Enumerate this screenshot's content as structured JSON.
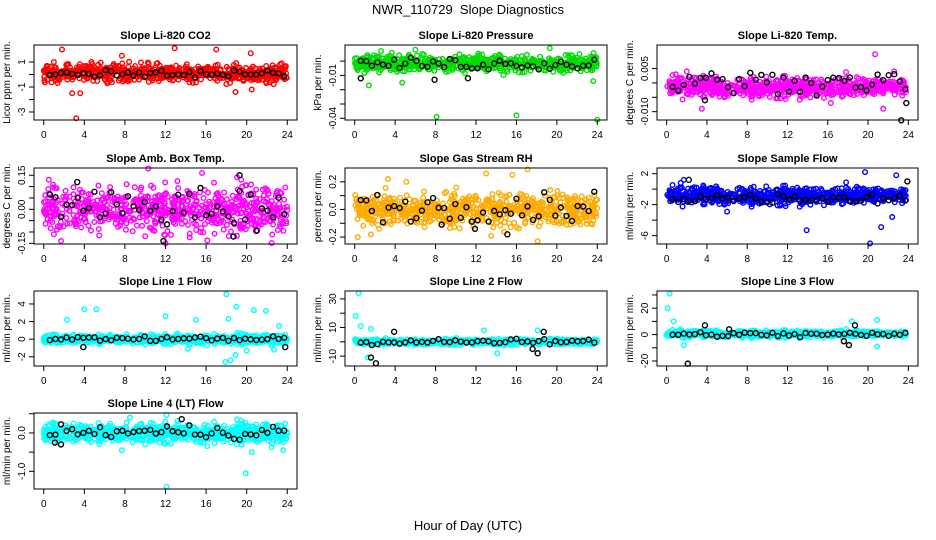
{
  "title": "NWR_110729  Slope Diagnostics",
  "xlabel": "Hour of Day (UTC)",
  "chart_data": [
    {
      "type": "scatter",
      "title": "Slope Li-820 CO2",
      "ylabel": "Licor ppm per min.",
      "color": "#ff0000",
      "xlim": [
        0,
        24
      ],
      "xticks": [
        0,
        4,
        8,
        12,
        16,
        20,
        24
      ],
      "ylim": [
        -3.64,
        2.36
      ],
      "yticks": [
        1,
        0,
        -1,
        -2,
        -3
      ],
      "ytick_labels": [
        "1",
        "",
        "-1",
        "",
        "-3"
      ],
      "typical_range": [
        -0.6,
        0.8
      ],
      "reference_range": [
        -0.2,
        0.3
      ],
      "outliers": [
        [
          1.8,
          2.0
        ],
        [
          12.9,
          2.1
        ],
        [
          17.0,
          2.0
        ],
        [
          20.4,
          1.7
        ],
        [
          3.2,
          -3.5
        ],
        [
          3.6,
          -1.5
        ],
        [
          2.8,
          -1.5
        ],
        [
          18.9,
          -1.4
        ],
        [
          7.7,
          1.5
        ],
        [
          20.5,
          -1.2
        ],
        [
          1.0,
          1.0
        ],
        [
          4.7,
          1.0
        ]
      ],
      "reference_outliers": []
    },
    {
      "type": "scatter",
      "title": "Slope Li-820 Pressure",
      "ylabel": "kPa per min.",
      "color": "#00dd00",
      "xlim": [
        0,
        24
      ],
      "xticks": [
        0,
        4,
        8,
        12,
        16,
        20,
        24
      ],
      "ylim": [
        -0.0412,
        0.0113
      ],
      "yticks": [
        0.0,
        -0.01,
        -0.02,
        -0.03,
        -0.04
      ],
      "ytick_labels": [
        "",
        "-0.01",
        "",
        "",
        "-0.04"
      ],
      "typical_range": [
        -0.007,
        0.004
      ],
      "reference_range": [
        -0.006,
        0.002
      ],
      "outliers": [
        [
          8.1,
          -0.039
        ],
        [
          16.0,
          -0.038
        ],
        [
          24.0,
          -0.041
        ],
        [
          1.4,
          -0.017
        ],
        [
          4.7,
          -0.015
        ],
        [
          23.6,
          -0.014
        ],
        [
          6.0,
          0.008
        ],
        [
          19.3,
          0.009
        ],
        [
          2.6,
          0.007
        ]
      ],
      "reference_outliers": [
        [
          0.6,
          -0.012
        ],
        [
          11.2,
          -0.012
        ],
        [
          7.9,
          -0.013
        ]
      ]
    },
    {
      "type": "scatter",
      "title": "Slope Li-820 Temp.",
      "ylabel": "degrees C per min.",
      "color": "#ff00ff",
      "xlim": [
        0,
        24
      ],
      "xticks": [
        0,
        4,
        8,
        12,
        16,
        20,
        24
      ],
      "ylim": [
        -0.0129,
        0.0132
      ],
      "yticks": [
        0.005,
        0.0,
        -0.005,
        -0.01
      ],
      "ytick_labels": [
        "0.005",
        "",
        "",
        "-0.010"
      ],
      "typical_range": [
        -0.005,
        0.002
      ],
      "reference_range": [
        -0.003,
        0.004
      ],
      "outliers": [
        [
          20.7,
          0.01
        ],
        [
          2.0,
          0.004
        ],
        [
          21.5,
          -0.009
        ],
        [
          3.5,
          -0.009
        ],
        [
          22.6,
          0.004
        ],
        [
          16.3,
          -0.007
        ],
        [
          0.9,
          0.003
        ]
      ],
      "reference_outliers": [
        [
          23.3,
          -0.013
        ],
        [
          23.8,
          -0.007
        ],
        [
          3.8,
          -0.006
        ]
      ]
    },
    {
      "type": "scatter",
      "title": "Slope Amb. Box Temp.",
      "ylabel": "degrees C per min.",
      "color": "#ff00ff",
      "xlim": [
        0,
        24
      ],
      "xticks": [
        0,
        4,
        8,
        12,
        16,
        20,
        24
      ],
      "ylim": [
        -0.153,
        0.182
      ],
      "yticks": [
        0.15,
        0.1,
        0.05,
        0.0,
        -0.05,
        -0.1,
        -0.15
      ],
      "ytick_labels": [
        "0.15",
        "",
        "",
        "0.00",
        "",
        "",
        "-0.15"
      ],
      "typical_range": [
        -0.1,
        0.1
      ],
      "reference_range": [
        -0.08,
        0.1
      ],
      "outliers": [
        [
          10.3,
          0.18
        ],
        [
          12.0,
          -0.15
        ],
        [
          15.6,
          0.16
        ],
        [
          1.0,
          -0.11
        ],
        [
          1.7,
          -0.14
        ],
        [
          0.5,
          0.13
        ]
      ],
      "reference_outliers": [
        [
          18.7,
          -0.12
        ],
        [
          11.8,
          -0.14
        ],
        [
          19.3,
          0.15
        ],
        [
          3.3,
          0.12
        ]
      ]
    },
    {
      "type": "scatter",
      "title": "Slope Gas Stream RH",
      "ylabel": "percent per min.",
      "color": "#ffaa00",
      "xlim": [
        0,
        24
      ],
      "xticks": [
        0,
        4,
        8,
        12,
        16,
        20,
        24
      ],
      "ylim": [
        -0.25,
        0.3
      ],
      "yticks": [
        0.2,
        0.1,
        0.0,
        -0.1,
        -0.2
      ],
      "ytick_labels": [
        "0.2",
        "",
        "0.0",
        "",
        "-0.2"
      ],
      "typical_range": [
        -0.12,
        0.12
      ],
      "reference_range": [
        -0.08,
        0.12
      ],
      "outliers": [
        [
          13.0,
          0.26
        ],
        [
          15.6,
          0.25
        ],
        [
          17.1,
          0.29
        ],
        [
          18.1,
          -0.23
        ],
        [
          0.3,
          -0.2
        ],
        [
          3.3,
          0.22
        ],
        [
          5.1,
          0.2
        ],
        [
          13.5,
          -0.19
        ],
        [
          1.6,
          -0.18
        ]
      ],
      "reference_outliers": [
        [
          11.9,
          -0.14
        ],
        [
          15.1,
          -0.18
        ],
        [
          8.6,
          -0.11
        ]
      ]
    },
    {
      "type": "scatter",
      "title": "Slope Sample Flow",
      "ylabel": "ml/min per min.",
      "color": "#0000ff",
      "xlim": [
        0,
        24
      ],
      "xticks": [
        0,
        4,
        8,
        12,
        16,
        20,
        24
      ],
      "ylim": [
        -7.08,
        2.73
      ],
      "yticks": [
        2,
        0,
        -2,
        -4,
        -6
      ],
      "ytick_labels": [
        "2",
        "",
        "-2",
        "",
        "-6"
      ],
      "typical_range": [
        -2.0,
        0.3
      ],
      "reference_range": [
        -1.8,
        -0.5
      ],
      "outliers": [
        [
          19.7,
          2.2
        ],
        [
          22.8,
          1.8
        ],
        [
          20.2,
          -7.0
        ],
        [
          13.9,
          -5.3
        ],
        [
          21.3,
          -4.9
        ],
        [
          22.4,
          -3.6
        ],
        [
          6.0,
          -2.9
        ],
        [
          1.7,
          1.2
        ]
      ],
      "reference_outliers": [
        [
          2.2,
          1.2
        ],
        [
          23.9,
          1.0
        ]
      ]
    },
    {
      "type": "scatter",
      "title": "Slope Line 1 Flow",
      "ylabel": "ml/min per min.",
      "color": "#00ffff",
      "xlim": [
        0,
        24
      ],
      "xticks": [
        0,
        4,
        8,
        12,
        16,
        20,
        24
      ],
      "ylim": [
        -3.05,
        5.47
      ],
      "yticks": [
        4,
        2,
        0,
        -2
      ],
      "ytick_labels": [
        "4",
        "2",
        "0",
        "-2"
      ],
      "typical_range": [
        -0.5,
        0.5
      ],
      "reference_range": [
        -0.2,
        0.3
      ],
      "outliers": [
        [
          18.0,
          5.1
        ],
        [
          4.0,
          3.4
        ],
        [
          5.2,
          3.4
        ],
        [
          19.0,
          3.7
        ],
        [
          20.7,
          3.3
        ],
        [
          21.9,
          3.2
        ],
        [
          12.0,
          2.6
        ],
        [
          2.3,
          2.2
        ],
        [
          15.0,
          2.2
        ],
        [
          17.9,
          -2.6
        ],
        [
          18.4,
          -2.4
        ],
        [
          18.9,
          -1.8
        ],
        [
          22.7,
          -1.2
        ],
        [
          20.0,
          -1.3
        ],
        [
          14.2,
          -1.1
        ],
        [
          23.2,
          1.5
        ],
        [
          18.2,
          2.3
        ]
      ],
      "reference_outliers": [
        [
          3.9,
          -0.9
        ],
        [
          23.8,
          -0.9
        ]
      ]
    },
    {
      "type": "scatter",
      "title": "Slope Line 2 Flow",
      "ylabel": "ml/min per min.",
      "color": "#00ffff",
      "xlim": [
        0,
        24
      ],
      "xticks": [
        0,
        4,
        8,
        12,
        16,
        20,
        24
      ],
      "ylim": [
        -16.9,
        35.5
      ],
      "yticks": [
        30,
        20,
        10,
        0,
        -10
      ],
      "ytick_labels": [
        "30",
        "",
        "10",
        "",
        "-10"
      ],
      "typical_range": [
        -2,
        2
      ],
      "reference_range": [
        -2,
        2
      ],
      "outliers": [
        [
          0.4,
          34
        ],
        [
          0.1,
          18
        ],
        [
          0.6,
          11
        ],
        [
          1.6,
          9
        ],
        [
          14.1,
          -8
        ],
        [
          12.8,
          8
        ],
        [
          1.3,
          -11
        ],
        [
          18.1,
          8
        ]
      ],
      "reference_outliers": [
        [
          2.1,
          -15
        ],
        [
          1.6,
          -11
        ],
        [
          3.9,
          7
        ],
        [
          17.6,
          -5
        ],
        [
          18.1,
          -8
        ],
        [
          18.7,
          7
        ]
      ]
    },
    {
      "type": "scatter",
      "title": "Slope Line 3 Flow",
      "ylabel": "ml/min per min.",
      "color": "#00ffff",
      "xlim": [
        0,
        24
      ],
      "xticks": [
        0,
        4,
        8,
        12,
        16,
        20,
        24
      ],
      "ylim": [
        -23.8,
        33
      ],
      "yticks": [
        30,
        20,
        10,
        0,
        -10,
        -20
      ],
      "ytick_labels": [
        "",
        "20",
        "",
        "0",
        "",
        "-20"
      ],
      "typical_range": [
        -2,
        3
      ],
      "reference_range": [
        -2,
        2
      ],
      "outliers": [
        [
          0.3,
          31
        ],
        [
          0.1,
          20
        ],
        [
          0.7,
          10
        ],
        [
          20.9,
          11
        ],
        [
          18.4,
          10
        ],
        [
          20.9,
          -9
        ],
        [
          1.7,
          -8
        ]
      ],
      "reference_outliers": [
        [
          2.1,
          -22
        ],
        [
          3.8,
          7
        ],
        [
          18.1,
          -8
        ],
        [
          17.6,
          -5
        ],
        [
          18.7,
          7
        ],
        [
          6.2,
          4
        ]
      ]
    },
    {
      "type": "scatter",
      "title": "Slope Line 4 (LT) Flow",
      "ylabel": "ml/min per min.",
      "color": "#00ffff",
      "xlim": [
        0,
        24
      ],
      "xticks": [
        0,
        4,
        8,
        12,
        16,
        20,
        24
      ],
      "ylim": [
        -1.46,
        0.52
      ],
      "yticks": [
        0.5,
        0.0,
        -0.5,
        -1.0
      ],
      "ytick_labels": [
        "",
        "0.0",
        "",
        "-1.0"
      ],
      "typical_range": [
        -0.25,
        0.25
      ],
      "reference_range": [
        -0.15,
        0.2
      ],
      "outliers": [
        [
          12.1,
          -1.4
        ],
        [
          19.9,
          -1.05
        ],
        [
          12.1,
          0.47
        ],
        [
          7.7,
          -0.45
        ],
        [
          23.6,
          -0.45
        ],
        [
          20.5,
          -0.5
        ],
        [
          8.5,
          0.4
        ]
      ],
      "reference_outliers": [
        [
          13.6,
          0.36
        ],
        [
          1.7,
          -0.3
        ],
        [
          1.1,
          -0.25
        ]
      ]
    }
  ]
}
